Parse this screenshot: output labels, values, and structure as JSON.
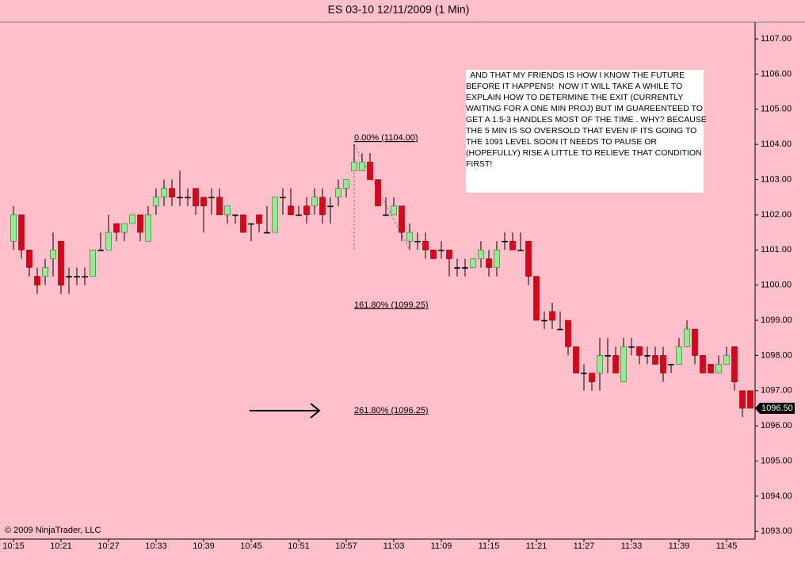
{
  "chart_data": {
    "type": "candlestick",
    "title": "ES 03-10  12/11/2009 (1 Min)",
    "copyright": "© 2009 NinjaTrader, LLC",
    "categories": [
      "10:15",
      null,
      null,
      null,
      null,
      null,
      "10:21",
      null,
      null,
      null,
      null,
      null,
      "10:27",
      null,
      null,
      null,
      null,
      null,
      "10:33",
      null,
      null,
      null,
      null,
      null,
      "10:39",
      null,
      null,
      null,
      null,
      null,
      "10:45",
      null,
      null,
      null,
      null,
      null,
      "10:51",
      null,
      null,
      null,
      null,
      null,
      "10:57",
      null,
      null,
      null,
      null,
      null,
      "11:03",
      null,
      null,
      null,
      null,
      null,
      "11:09",
      null,
      null,
      null,
      null,
      null,
      "11:15",
      null,
      null,
      null,
      null,
      null,
      "11:21",
      null,
      null,
      null,
      null,
      null,
      "11:27",
      null,
      null,
      null,
      null,
      null,
      "11:33",
      null,
      null,
      null,
      null,
      null,
      "11:39",
      null,
      null,
      null,
      null,
      null,
      "11:45",
      null,
      null,
      null
    ],
    "open": [
      1101.25,
      1102,
      1101,
      1100.25,
      1100.25,
      1100.75,
      1101.25,
      1100.25,
      1100.25,
      1100.25,
      1100.25,
      1101,
      1101,
      1101.75,
      1101.5,
      1101.75,
      1102,
      1101.25,
      1102.25,
      1102.5,
      1102.75,
      1102.5,
      1102.5,
      1102.75,
      1102.5,
      1102.5,
      1102.5,
      1102,
      1102,
      1102,
      1101.75,
      1102,
      1101.5,
      1101.5,
      1102.5,
      1102.25,
      1102,
      1102.25,
      1102.25,
      1102.5,
      1102.25,
      1102.5,
      1102.75,
      1103.25,
      1103.25,
      1103.5,
      1103,
      1102,
      1102,
      1102.25,
      1101.25,
      1101.25,
      1101.25,
      1101,
      1101,
      1101,
      1100.5,
      1100.5,
      1100.5,
      1100.75,
      1100.75,
      1100.5,
      1101.25,
      1101.25,
      1101,
      1101.25,
      1100.25,
      1099,
      1099.25,
      1098.75,
      1099,
      1098.25,
      1097.5,
      1097.5,
      1097.5,
      1098,
      1098,
      1097.25,
      1098.25,
      1098.25,
      1098,
      1098,
      1098,
      1097.75,
      1097.75,
      1098.25,
      1098.75,
      1098,
      1097.75,
      1097.5,
      1097.75,
      1098.25,
      1097,
      1097
    ],
    "high": [
      1102.25,
      1102,
      1101,
      1100.5,
      1100.75,
      1101.5,
      1101.25,
      1100.5,
      1100.5,
      1100.5,
      1101,
      1101.5,
      1102,
      1101.75,
      1101.75,
      1102,
      1102,
      1102.25,
      1102.75,
      1103,
      1103,
      1103.25,
      1102.75,
      1102.75,
      1102.5,
      1102.75,
      1102.75,
      1102.25,
      1102,
      1102,
      1101.75,
      1102,
      1102.25,
      1102.5,
      1102.75,
      1102.75,
      1102.25,
      1102.5,
      1102.75,
      1102.75,
      1102.5,
      1103,
      1103,
      1104,
      1103.75,
      1103.75,
      1103,
      1102.5,
      1102.5,
      1102.25,
      1101.75,
      1101.5,
      1101.5,
      1101,
      1101.25,
      1101,
      1100.75,
      1100.75,
      1100.75,
      1101.25,
      1101,
      1101.25,
      1101.5,
      1101.5,
      1101.5,
      1101.25,
      1100.25,
      1099.25,
      1099.5,
      1099.25,
      1099,
      1098.25,
      1097.75,
      1097.5,
      1098.5,
      1098.5,
      1098.25,
      1098.5,
      1098.5,
      1098.25,
      1098.25,
      1098.25,
      1098.25,
      1097.75,
      1098.5,
      1099,
      1098.75,
      1098,
      1097.75,
      1098,
      1098.25,
      1098.25,
      1097,
      1097
    ],
    "low": [
      1101,
      1100.75,
      1100.25,
      1099.75,
      1100,
      1100.25,
      1099.75,
      1099.75,
      1100,
      1100,
      1100.25,
      1101,
      1101,
      1101.25,
      1101.25,
      1101.75,
      1101.25,
      1101.25,
      1102,
      1102.25,
      1102.25,
      1102.25,
      1102.25,
      1102,
      1101.5,
      1102,
      1102,
      1101.75,
      1101.75,
      1101.5,
      1101.25,
      1101.5,
      1101.5,
      1101.5,
      1102,
      1102,
      1102,
      1101.75,
      1102,
      1101.75,
      1101.75,
      1102.25,
      1102.5,
      1103.25,
      1103.25,
      1103,
      1102.25,
      1102,
      1102,
      1101.25,
      1101,
      1101,
      1100.75,
      1100.75,
      1100.75,
      1100.25,
      1100.25,
      1100.25,
      1100.5,
      1100.5,
      1100.25,
      1100.25,
      1101,
      1101,
      1101,
      1100,
      1099,
      1098.75,
      1098.75,
      1098.75,
      1098,
      1097.5,
      1097,
      1097,
      1097,
      1097.5,
      1097.5,
      1097.25,
      1098,
      1097.75,
      1097.75,
      1097.75,
      1097.25,
      1097.5,
      1097.75,
      1098.25,
      1097.75,
      1097.5,
      1097.5,
      1097.5,
      1097.75,
      1097,
      1096.25,
      1096.5
    ],
    "close": [
      1102,
      1101,
      1100.5,
      1100,
      1100.5,
      1101,
      1100,
      1100.25,
      1100.25,
      1100.25,
      1101,
      1101,
      1101.5,
      1101.5,
      1101.75,
      1102,
      1101.5,
      1102,
      1102.5,
      1102.75,
      1102.5,
      1102.5,
      1102.5,
      1102.25,
      1102.25,
      1102.5,
      1102,
      1102.25,
      1102,
      1101.5,
      1101.75,
      1101.75,
      1101.5,
      1102.5,
      1102.5,
      1102,
      1102,
      1102,
      1102.5,
      1102,
      1102.25,
      1102.75,
      1103,
      1103.5,
      1103.5,
      1103,
      1102.25,
      1102,
      1102.25,
      1101.5,
      1101.5,
      1101.25,
      1101,
      1100.75,
      1101,
      1100.75,
      1100.5,
      1100.5,
      1100.75,
      1101,
      1100.5,
      1101,
      1101.25,
      1101,
      1101,
      1100.25,
      1099,
      1099,
      1099,
      1098.75,
      1098.25,
      1097.5,
      1097.5,
      1097.25,
      1098,
      1098,
      1097.5,
      1098.25,
      1098.25,
      1098,
      1098,
      1097.75,
      1097.5,
      1097.75,
      1098.25,
      1098.75,
      1098,
      1097.5,
      1097.5,
      1097.75,
      1098,
      1097.25,
      1096.5,
      1096.5
    ],
    "up_color": "#90ee90",
    "down_color": "#e0001b",
    "ylim": [
      1092.78,
      1107.43
    ],
    "yticks": [
      {
        "value": 1093,
        "label": "1093.00"
      },
      {
        "value": 1094,
        "label": "1094.00"
      },
      {
        "value": 1095,
        "label": "1095.00"
      },
      {
        "value": 1096,
        "label": "1096.00"
      },
      {
        "value": 1097,
        "label": "1097.00"
      },
      {
        "value": 1098,
        "label": "1098.00"
      },
      {
        "value": 1099,
        "label": "1099.00"
      },
      {
        "value": 1100,
        "label": "1100.00"
      },
      {
        "value": 1101,
        "label": "1101.00"
      },
      {
        "value": 1102,
        "label": "1102.00"
      },
      {
        "value": 1103,
        "label": "1103.00"
      },
      {
        "value": 1104,
        "label": "1104.00"
      },
      {
        "value": 1105,
        "label": "1105.00"
      },
      {
        "value": 1106,
        "label": "1106.00"
      },
      {
        "value": 1107,
        "label": "1107.00"
      }
    ],
    "last_price": {
      "value": 1096.5,
      "label": "1096.50"
    },
    "fib_levels": [
      {
        "value": 1104,
        "label": "0.00% (1104.00)",
        "color": "#808080"
      },
      {
        "value": 1099.25,
        "label": "161.80% (1099.25)",
        "color": "#993399"
      },
      {
        "value": 1096.25,
        "label": "261.80% (1096.25)",
        "color": "#000000"
      }
    ],
    "note": [
      "  AND THAT MY FRIENDS IS HOW I KNOW THE FUTURE",
      "BEFORE IT HAPPENS!  NOW IT WILL TAKE A WHILE TO",
      "EXPLAIN HOW TO DETERMINE THE EXIT (CURRENTLY",
      "WAITING FOR A ONE MIN PROJ) BUT IM GUAREENTEED TO",
      "GET A 1.5-3 HANDLES MOST OF THE TIME . WHY? BECAUSE",
      "THE 5 MIN IS SO OVERSOLD THAT EVEN IF ITS GOING TO",
      "THE 1091 LEVEL SOON IT NEEDS TO PAUSE OR",
      "(HOPEFULLY) RISE A LITTLE TO RELIEVE THAT CONDITION",
      "FIRST!"
    ]
  }
}
